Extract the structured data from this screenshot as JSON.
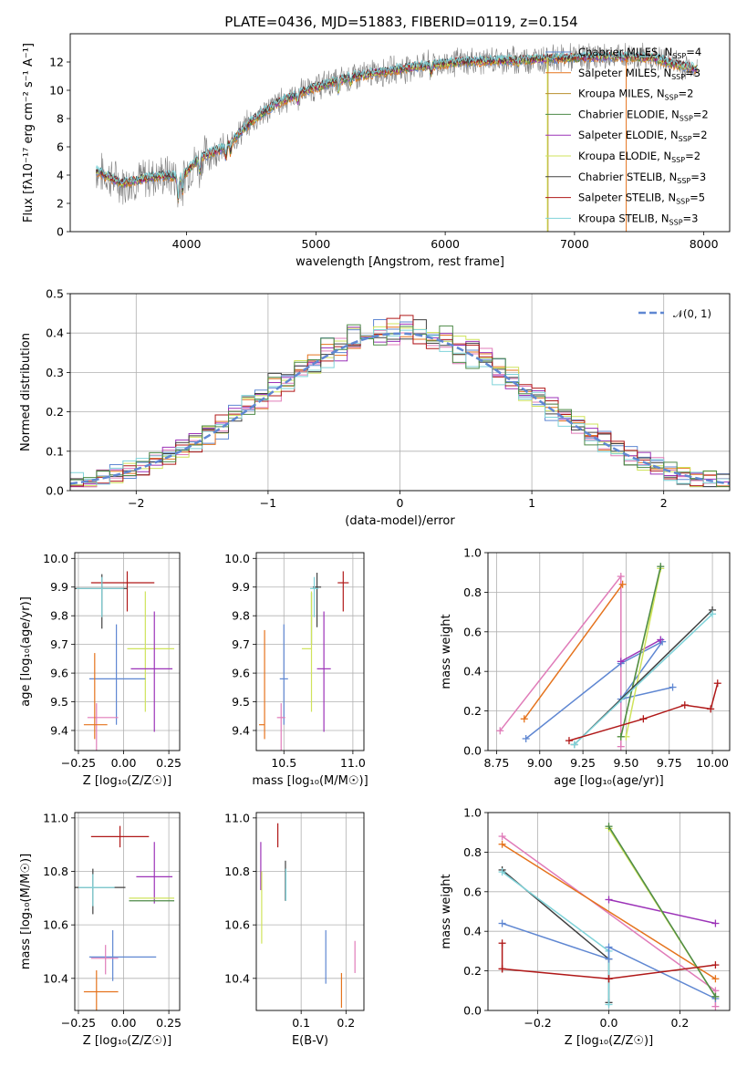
{
  "title": "PLATE=0436, MJD=51883, FIBERID=0119, z=0.154",
  "palette": {
    "Chabrier MILES": "#5f87d2",
    "Salpeter MILES": "#e5731d",
    "Kroupa MILES": "#b88f2c",
    "Chabrier ELODIE": "#4d8a47",
    "Salpeter ELODIE": "#9c33b8",
    "Kroupa ELODIE": "#cfe35b",
    "Chabrier STELIB": "#404040",
    "Salpeter STELIB": "#b01818",
    "Kroupa STELIB": "#7fd3d9",
    "Pink": "#e07cb9",
    "Data": "#808080",
    "Gauss": "#5f87d2"
  },
  "chart_data": [
    {
      "id": "spectrum",
      "type": "line",
      "title": "PLATE=0436, MJD=51883, FIBERID=0119, z=0.154",
      "xlabel": "wavelength [Angstrom, rest frame]",
      "ylabel": "Flux [fλ10⁻¹⁷ erg cm⁻² s⁻¹ A⁻¹]",
      "xlim": [
        3100,
        8200
      ],
      "ylim": [
        0,
        14
      ],
      "xticks": [
        4000,
        5000,
        6000,
        7000,
        8000
      ],
      "yticks": [
        0,
        2,
        4,
        6,
        8,
        10,
        12
      ],
      "legend_position": "right",
      "legend": [
        {
          "name": "Chabrier MILES",
          "nssp": "4"
        },
        {
          "name": "Salpeter MILES",
          "nssp": "3"
        },
        {
          "name": "Kroupa MILES",
          "nssp": "2"
        },
        {
          "name": "Chabrier ELODIE",
          "nssp": "2"
        },
        {
          "name": "Salpeter ELODIE",
          "nssp": "2"
        },
        {
          "name": "Kroupa ELODIE",
          "nssp": "2"
        },
        {
          "name": "Chabrier STELIB",
          "nssp": "3"
        },
        {
          "name": "Salpeter STELIB",
          "nssp": "5"
        },
        {
          "name": "Kroupa STELIB",
          "nssp": "3"
        }
      ],
      "continuum": [
        [
          3300,
          4.3
        ],
        [
          3500,
          3.4
        ],
        [
          3700,
          3.8
        ],
        [
          3850,
          4.0
        ],
        [
          3950,
          3.8
        ],
        [
          4100,
          5.2
        ],
        [
          4300,
          6.0
        ],
        [
          4500,
          7.8
        ],
        [
          4700,
          9.1
        ],
        [
          4900,
          9.9
        ],
        [
          5100,
          10.5
        ],
        [
          5300,
          11.0
        ],
        [
          5500,
          11.3
        ],
        [
          5800,
          11.7
        ],
        [
          6100,
          12.0
        ],
        [
          6400,
          12.1
        ],
        [
          6700,
          12.2
        ],
        [
          7000,
          12.3
        ],
        [
          7300,
          12.4
        ],
        [
          7600,
          12.3
        ],
        [
          7800,
          11.8
        ],
        [
          7950,
          11.5
        ]
      ]
    },
    {
      "id": "residuals",
      "type": "bar",
      "xlabel": "(data-model)/error",
      "ylabel": "Normed distribution",
      "xlim": [
        -2.5,
        2.5
      ],
      "ylim": [
        0,
        0.5
      ],
      "xticks": [
        -2,
        -1,
        0,
        1,
        2
      ],
      "yticks": [
        0.0,
        0.1,
        0.2,
        0.3,
        0.4,
        0.5
      ],
      "legend_position": "top-right",
      "gauss_label": "𝒩(0, 1)"
    },
    {
      "id": "age-vs-z",
      "type": "scatter",
      "xlabel": "Z [log₁₀(Z/Z☉)]",
      "ylabel": "age  [log₁₀(age/yr)]",
      "xlim": [
        -0.27,
        0.31
      ],
      "ylim": [
        9.33,
        10.02
      ],
      "xticks": [
        -0.25,
        0.0,
        0.25
      ],
      "yticks": [
        9.4,
        9.5,
        9.6,
        9.7,
        9.8,
        9.9,
        10.0
      ],
      "points": [
        {
          "model": "Salpeter STELIB",
          "x": 0.02,
          "y": 9.915,
          "xerr": [
            0.2,
            0.15
          ],
          "yerr": [
            0.1,
            0.04
          ]
        },
        {
          "model": "Chabrier STELIB",
          "x": -0.12,
          "y": 9.895,
          "xerr": [
            0.16,
            0.14
          ],
          "yerr": [
            0.14,
            0.05
          ]
        },
        {
          "model": "Kroupa STELIB",
          "x": -0.12,
          "y": 9.895,
          "xerr": [
            0.14,
            0.12
          ],
          "yerr": [
            0.1,
            0.04
          ]
        },
        {
          "model": "Kroupa ELODIE",
          "x": 0.12,
          "y": 9.685,
          "xerr": [
            0.1,
            0.16
          ],
          "yerr": [
            0.22,
            0.2
          ]
        },
        {
          "model": "Salpeter ELODIE",
          "x": 0.17,
          "y": 9.615,
          "xerr": [
            0.13,
            0.1
          ],
          "yerr": [
            0.22,
            0.2
          ]
        },
        {
          "model": "Chabrier MILES",
          "x": -0.04,
          "y": 9.58,
          "xerr": [
            0.15,
            0.16
          ],
          "yerr": [
            0.16,
            0.19
          ]
        },
        {
          "model": "Pink",
          "x": -0.15,
          "y": 9.445,
          "xerr": [
            0.05,
            0.12
          ],
          "yerr": [
            0.12,
            0.05
          ]
        },
        {
          "model": "Salpeter MILES",
          "x": -0.16,
          "y": 9.42,
          "xerr": [
            0.06,
            0.07
          ],
          "yerr": [
            0.05,
            0.25
          ]
        }
      ]
    },
    {
      "id": "age-vs-mass",
      "type": "scatter",
      "xlabel": "mass [log₁₀(M/M☉)]",
      "ylabel": "",
      "xlim": [
        10.3,
        11.08
      ],
      "ylim": [
        9.33,
        10.02
      ],
      "xticks": [
        10.5,
        11.0
      ],
      "yticks": [
        9.4,
        9.5,
        9.6,
        9.7,
        9.8,
        9.9,
        10.0
      ],
      "points": [
        {
          "model": "Salpeter STELIB",
          "x": 10.93,
          "y": 9.915,
          "xerr": [
            0.04,
            0.04
          ],
          "yerr": [
            0.1,
            0.04
          ]
        },
        {
          "model": "Chabrier STELIB",
          "x": 10.74,
          "y": 9.9,
          "xerr": [
            0.03,
            0.03
          ],
          "yerr": [
            0.14,
            0.05
          ]
        },
        {
          "model": "Kroupa STELIB",
          "x": 10.72,
          "y": 9.895,
          "xerr": [
            0.03,
            0.03
          ],
          "yerr": [
            0.1,
            0.04
          ]
        },
        {
          "model": "Chabrier ELODIE",
          "x": 10.7,
          "y": 9.7,
          "xerr": [
            0.0,
            0.0
          ],
          "yerr": [
            0.0,
            0.18
          ]
        },
        {
          "model": "Kroupa ELODIE",
          "x": 10.7,
          "y": 9.685,
          "xerr": [
            0.07,
            0.0
          ],
          "yerr": [
            0.22,
            0.2
          ]
        },
        {
          "model": "Salpeter ELODIE",
          "x": 10.79,
          "y": 9.615,
          "xerr": [
            0.05,
            0.05
          ],
          "yerr": [
            0.22,
            0.2
          ]
        },
        {
          "model": "Chabrier MILES",
          "x": 10.5,
          "y": 9.58,
          "xerr": [
            0.03,
            0.03
          ],
          "yerr": [
            0.16,
            0.19
          ]
        },
        {
          "model": "Pink",
          "x": 10.48,
          "y": 9.445,
          "xerr": [
            0.03,
            0.03
          ],
          "yerr": [
            0.12,
            0.05
          ]
        },
        {
          "model": "Salpeter MILES",
          "x": 10.36,
          "y": 9.42,
          "xerr": [
            0.04,
            0.0
          ],
          "yerr": [
            0.05,
            0.33
          ]
        }
      ]
    },
    {
      "id": "weight-vs-age",
      "type": "line",
      "xlabel": "age  [log₁₀(age/yr)]",
      "ylabel": "mass weight",
      "xlim": [
        8.7,
        10.1
      ],
      "ylim": [
        0,
        1.0
      ],
      "xticks": [
        8.75,
        9.0,
        9.25,
        9.5,
        9.75,
        10.0
      ],
      "yticks": [
        0.0,
        0.2,
        0.4,
        0.6,
        0.8,
        1.0
      ],
      "series": [
        {
          "model": "Pink",
          "x": [
            8.77,
            9.47,
            9.47
          ],
          "y": [
            0.1,
            0.88,
            0.02
          ]
        },
        {
          "model": "Salpeter MILES",
          "x": [
            8.91,
            9.48
          ],
          "y": [
            0.16,
            0.84
          ]
        },
        {
          "model": "Chabrier MILES",
          "x": [
            8.92,
            9.47,
            9.71,
            9.47,
            9.77
          ],
          "y": [
            0.06,
            0.44,
            0.55,
            0.26,
            0.32
          ]
        },
        {
          "model": "Salpeter ELODIE",
          "x": [
            9.47,
            9.7
          ],
          "y": [
            0.45,
            0.56
          ]
        },
        {
          "model": "Kroupa ELODIE",
          "x": [
            9.47,
            9.7,
            9.5
          ],
          "y": [
            0.07,
            0.92,
            0.07
          ]
        },
        {
          "model": "Chabrier ELODIE",
          "x": [
            9.47,
            9.7
          ],
          "y": [
            0.07,
            0.93
          ]
        },
        {
          "model": "Chabrier STELIB",
          "x": [
            9.2,
            10.0
          ],
          "y": [
            0.03,
            0.71
          ]
        },
        {
          "model": "Kroupa STELIB",
          "x": [
            9.2,
            10.0
          ],
          "y": [
            0.03,
            0.69
          ]
        },
        {
          "model": "Salpeter STELIB",
          "x": [
            9.17,
            9.6,
            9.84,
            9.99,
            10.03
          ],
          "y": [
            0.05,
            0.16,
            0.23,
            0.21,
            0.34
          ]
        }
      ]
    },
    {
      "id": "mass-vs-z",
      "type": "scatter",
      "xlabel": "Z [log₁₀(Z/Z☉)]",
      "ylabel": "mass [log₁₀(M/M☉)]",
      "xlim": [
        -0.27,
        0.31
      ],
      "ylim": [
        10.28,
        11.02
      ],
      "xticks": [
        -0.25,
        0.0,
        0.25
      ],
      "yticks": [
        10.4,
        10.6,
        10.8,
        11.0
      ],
      "points": [
        {
          "model": "Salpeter STELIB",
          "x": -0.02,
          "y": 10.93,
          "xerr": [
            0.16,
            0.16
          ],
          "yerr": [
            0.04,
            0.04
          ]
        },
        {
          "model": "Salpeter ELODIE",
          "x": 0.17,
          "y": 10.78,
          "xerr": [
            0.1,
            0.1
          ],
          "yerr": [
            0.1,
            0.13
          ]
        },
        {
          "model": "Chabrier STELIB",
          "x": -0.17,
          "y": 10.74,
          "xerr": [
            0.1,
            0.18
          ],
          "yerr": [
            0.1,
            0.07
          ]
        },
        {
          "model": "Kroupa STELIB",
          "x": -0.17,
          "y": 10.74,
          "xerr": [
            0.08,
            0.12
          ],
          "yerr": [
            0.07,
            0.05
          ]
        },
        {
          "model": "Kroupa ELODIE",
          "x": 0.17,
          "y": 10.7,
          "xerr": [
            0.14,
            0.11
          ],
          "yerr": [
            0.0,
            0.0
          ]
        },
        {
          "model": "Chabrier ELODIE",
          "x": 0.17,
          "y": 10.69,
          "xerr": [
            0.14,
            0.11
          ],
          "yerr": [
            0.0,
            0.0
          ]
        },
        {
          "model": "Chabrier MILES",
          "x": -0.06,
          "y": 10.48,
          "xerr": [
            0.13,
            0.24
          ],
          "yerr": [
            0.09,
            0.1
          ]
        },
        {
          "model": "Pink",
          "x": -0.1,
          "y": 10.475,
          "xerr": [
            0.08,
            0.07
          ],
          "yerr": [
            0.06,
            0.05
          ]
        },
        {
          "model": "Salpeter MILES",
          "x": -0.15,
          "y": 10.35,
          "xerr": [
            0.07,
            0.12
          ],
          "yerr": [
            0.07,
            0.08
          ]
        }
      ]
    },
    {
      "id": "mass-vs-ebv",
      "type": "scatter",
      "xlabel": "E(B-V)",
      "ylabel": "",
      "xlim": [
        0.0,
        0.24
      ],
      "ylim": [
        10.28,
        11.02
      ],
      "xticks": [
        0.1,
        0.2
      ],
      "yticks": [
        10.4,
        10.6,
        10.8,
        11.0
      ],
      "points": [
        {
          "model": "Salpeter STELIB",
          "x": 0.048,
          "y": 10.93,
          "xerr": [
            0,
            0
          ],
          "yerr": [
            0.04,
            0.05
          ]
        },
        {
          "model": "Salpeter ELODIE",
          "x": 0.01,
          "y": 10.78,
          "xerr": [
            0,
            0
          ],
          "yerr": [
            0.05,
            0.13
          ]
        },
        {
          "model": "Kroupa ELODIE",
          "x": 0.012,
          "y": 10.7,
          "xerr": [
            0,
            0
          ],
          "yerr": [
            0.17,
            0.1
          ]
        },
        {
          "model": "Chabrier STELIB",
          "x": 0.065,
          "y": 10.75,
          "xerr": [
            0,
            0
          ],
          "yerr": [
            0.06,
            0.09
          ]
        },
        {
          "model": "Kroupa STELIB",
          "x": 0.066,
          "y": 10.74,
          "xerr": [
            0,
            0
          ],
          "yerr": [
            0.05,
            0.07
          ]
        },
        {
          "model": "Chabrier MILES",
          "x": 0.155,
          "y": 10.48,
          "xerr": [
            0,
            0
          ],
          "yerr": [
            0.1,
            0.1
          ]
        },
        {
          "model": "Salpeter MILES",
          "x": 0.19,
          "y": 10.35,
          "xerr": [
            0,
            0
          ],
          "yerr": [
            0.06,
            0.07
          ]
        },
        {
          "model": "Pink",
          "x": 0.22,
          "y": 10.48,
          "xerr": [
            0,
            0
          ],
          "yerr": [
            0.06,
            0.06
          ]
        }
      ]
    },
    {
      "id": "weight-vs-z",
      "type": "line",
      "xlabel": "Z [log₁₀(Z/Z☉)]",
      "ylabel": "mass weight",
      "xlim": [
        -0.34,
        0.34
      ],
      "ylim": [
        0,
        1.0
      ],
      "xticks": [
        -0.2,
        0.0,
        0.2
      ],
      "yticks": [
        0.0,
        0.2,
        0.4,
        0.6,
        0.8,
        1.0
      ],
      "series": [
        {
          "model": "Pink",
          "x": [
            -0.3,
            0.3,
            0.3
          ],
          "y": [
            0.88,
            0.1,
            0.02
          ]
        },
        {
          "model": "Salpeter MILES",
          "x": [
            -0.3,
            0.3
          ],
          "y": [
            0.84,
            0.16
          ]
        },
        {
          "model": "Chabrier STELIB",
          "x": [
            -0.3,
            0.0,
            0.0
          ],
          "y": [
            0.71,
            0.26,
            0.04
          ]
        },
        {
          "model": "Kroupa STELIB",
          "x": [
            -0.3,
            0.0,
            0.0
          ],
          "y": [
            0.7,
            0.3,
            0.03
          ]
        },
        {
          "model": "Salpeter ELODIE",
          "x": [
            0.0,
            0.3
          ],
          "y": [
            0.56,
            0.44
          ]
        },
        {
          "model": "Chabrier MILES",
          "x": [
            -0.3,
            0.0,
            0.0,
            0.3
          ],
          "y": [
            0.44,
            0.26,
            0.32,
            0.06
          ]
        },
        {
          "model": "Kroupa ELODIE",
          "x": [
            0.0,
            0.3
          ],
          "y": [
            0.92,
            0.07
          ]
        },
        {
          "model": "Chabrier ELODIE",
          "x": [
            0.0,
            0.3
          ],
          "y": [
            0.93,
            0.07
          ]
        },
        {
          "model": "Salpeter STELIB",
          "x": [
            -0.3,
            -0.3,
            -0.3,
            0.0,
            0.0,
            0.3
          ],
          "y": [
            0.34,
            0.21,
            0.21,
            0.16,
            0.16,
            0.23
          ]
        }
      ]
    }
  ]
}
